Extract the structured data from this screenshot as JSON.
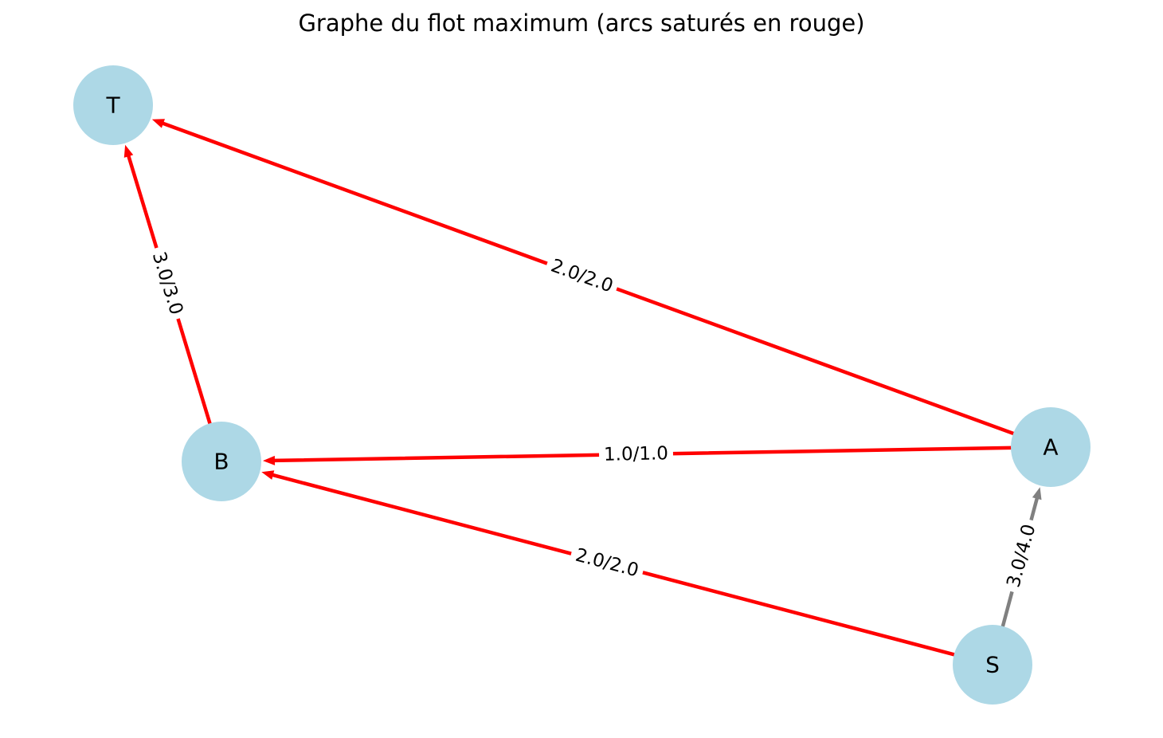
{
  "title": "Graphe du flot maximum (arcs saturés en rouge)",
  "colors": {
    "node_fill": "#add8e6",
    "saturated_edge": "#ff0000",
    "unsaturated_edge": "#808080",
    "label_background": "#ffffff"
  },
  "nodes": [
    {
      "id": "T",
      "label": "T"
    },
    {
      "id": "B",
      "label": "B"
    },
    {
      "id": "A",
      "label": "A"
    },
    {
      "id": "S",
      "label": "S"
    }
  ],
  "edges": [
    {
      "from": "A",
      "to": "T",
      "flow": 2.0,
      "capacity": 2.0,
      "label": "2.0/2.0",
      "saturated": true
    },
    {
      "from": "B",
      "to": "T",
      "flow": 3.0,
      "capacity": 3.0,
      "label": "3.0/3.0",
      "saturated": true
    },
    {
      "from": "A",
      "to": "B",
      "flow": 1.0,
      "capacity": 1.0,
      "label": "1.0/1.0",
      "saturated": true
    },
    {
      "from": "S",
      "to": "B",
      "flow": 2.0,
      "capacity": 2.0,
      "label": "2.0/2.0",
      "saturated": true
    },
    {
      "from": "S",
      "to": "A",
      "flow": 3.0,
      "capacity": 4.0,
      "label": "3.0/4.0",
      "saturated": false
    }
  ]
}
